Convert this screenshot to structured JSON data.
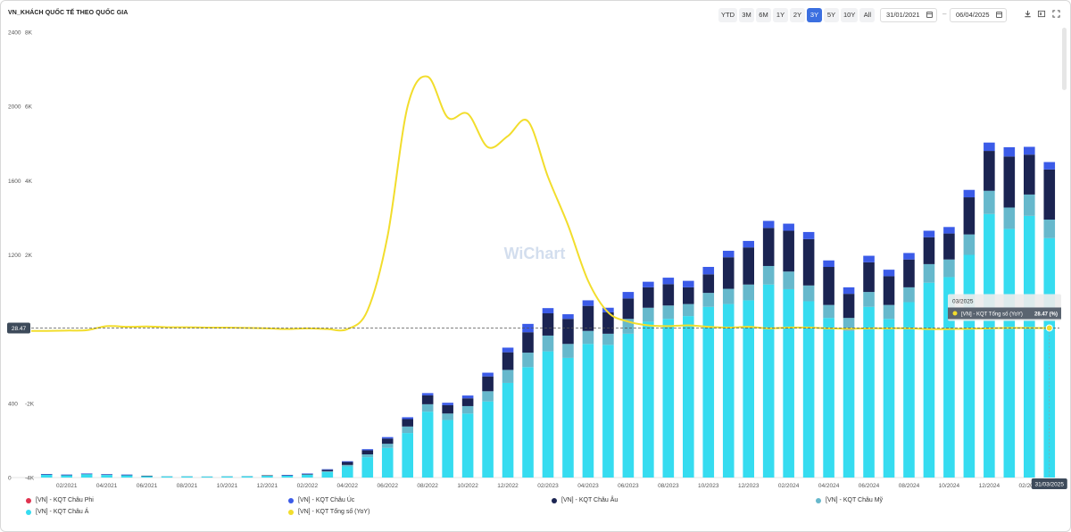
{
  "title": "VN_KHÁCH QUỐC TẾ THEO QUỐC GIA",
  "range_buttons": [
    "YTD",
    "3M",
    "6M",
    "1Y",
    "2Y",
    "3Y",
    "5Y",
    "10Y",
    "All"
  ],
  "active_range": "3Y",
  "date_from": "31/01/2021",
  "date_sep": "–",
  "date_to": "06/04/2025",
  "icons": {
    "download": "download-icon",
    "excel": "excel-icon",
    "fullscreen": "fullscreen-icon",
    "calendar": "calendar-icon"
  },
  "watermark": "WiChart",
  "tooltip": {
    "date": "03/2025",
    "series": "[VN] - KQT Tổng số (YoY)",
    "value": "28.47 (%)"
  },
  "crosshair": {
    "y_label": "28.47",
    "x_label": "31/03/2025"
  },
  "legend": [
    {
      "name": "[VN] - KQT Châu Phi",
      "color": "#e0334f"
    },
    {
      "name": "[VN] - KQT Châu Úc",
      "color": "#3b5be8"
    },
    {
      "name": "[VN] - KQT Châu Âu",
      "color": "#1b2452"
    },
    {
      "name": "[VN] - KQT Châu Mỹ",
      "color": "#67b8cc"
    },
    {
      "name": "[VN] - KQT Châu Á",
      "color": "#36dcf0"
    },
    {
      "name": "[VN] - KQT Tổng số (YoY)",
      "color": "#f2dd2c"
    }
  ],
  "chart_data": {
    "type": "bar",
    "stacked": true,
    "x": [
      "01/2021",
      "02/2021",
      "03/2021",
      "04/2021",
      "05/2021",
      "06/2021",
      "07/2021",
      "08/2021",
      "09/2021",
      "10/2021",
      "11/2021",
      "12/2021",
      "01/2022",
      "02/2022",
      "03/2022",
      "04/2022",
      "05/2022",
      "06/2022",
      "07/2022",
      "08/2022",
      "09/2022",
      "10/2022",
      "11/2022",
      "12/2022",
      "01/2023",
      "02/2023",
      "03/2023",
      "04/2023",
      "05/2023",
      "06/2023",
      "07/2023",
      "08/2023",
      "09/2023",
      "10/2023",
      "11/2023",
      "12/2023",
      "01/2024",
      "02/2024",
      "03/2024",
      "04/2024",
      "05/2024",
      "06/2024",
      "07/2024",
      "08/2024",
      "09/2024",
      "10/2024",
      "11/2024",
      "12/2024",
      "01/2025",
      "02/2025",
      "03/2025"
    ],
    "x_tick_labels": [
      "02/2021",
      "04/2021",
      "06/2021",
      "08/2021",
      "10/2021",
      "12/2021",
      "02/2022",
      "04/2022",
      "06/2022",
      "08/2022",
      "10/2022",
      "12/2022",
      "02/2023",
      "04/2023",
      "06/2023",
      "08/2023",
      "10/2023",
      "12/2023",
      "02/2024",
      "04/2024",
      "06/2024",
      "08/2024",
      "10/2024",
      "12/2024",
      "02/2025"
    ],
    "left_axis": {
      "ticks": [
        0,
        400,
        800,
        1200,
        1600,
        2000,
        2400
      ],
      "labels": [
        "0",
        "400",
        "800",
        "1200",
        "1600",
        "2000",
        "2400"
      ],
      "ylim": [
        0,
        2400
      ]
    },
    "right_axis": {
      "ticks": [
        -4000,
        -2000,
        0,
        2000,
        4000,
        6000,
        8000
      ],
      "labels": [
        "-4K",
        "-2K",
        "0",
        "2K",
        "4K",
        "6K",
        "8K"
      ],
      "ylim": [
        -4000,
        8000
      ]
    },
    "series": [
      {
        "name": "[VN] - KQT Châu Á",
        "color": "#36dcf0",
        "axis": "left",
        "values": [
          15,
          12,
          18,
          14,
          12,
          8,
          6,
          6,
          5,
          6,
          7,
          10,
          10,
          15,
          30,
          60,
          110,
          160,
          240,
          355,
          310,
          345,
          410,
          510,
          595,
          680,
          645,
          720,
          715,
          775,
          840,
          855,
          870,
          920,
          935,
          955,
          1040,
          1015,
          950,
          860,
          790,
          920,
          855,
          945,
          1050,
          1080,
          1200,
          1420,
          1340,
          1410,
          1290
        ]
      },
      {
        "name": "[VN] - KQT Châu Mỹ",
        "color": "#67b8cc",
        "axis": "left",
        "values": [
          2,
          2,
          2,
          2,
          2,
          1,
          1,
          1,
          1,
          1,
          1,
          1,
          2,
          2,
          4,
          8,
          15,
          22,
          35,
          40,
          35,
          40,
          55,
          70,
          78,
          85,
          75,
          70,
          60,
          80,
          75,
          72,
          65,
          75,
          82,
          85,
          100,
          95,
          85,
          70,
          70,
          80,
          75,
          80,
          100,
          95,
          110,
          125,
          115,
          115,
          100
        ]
      },
      {
        "name": "[VN] - KQT Châu Âu",
        "color": "#1b2452",
        "axis": "left",
        "values": [
          1,
          1,
          1,
          1,
          1,
          1,
          0,
          0,
          0,
          0,
          0,
          1,
          1,
          3,
          8,
          16,
          22,
          28,
          40,
          48,
          45,
          42,
          80,
          95,
          110,
          120,
          135,
          135,
          115,
          110,
          110,
          115,
          90,
          100,
          170,
          200,
          205,
          220,
          250,
          205,
          130,
          160,
          155,
          150,
          145,
          140,
          200,
          215,
          275,
          215,
          270
        ]
      },
      {
        "name": "[VN] - KQT Châu Úc",
        "color": "#3b5be8",
        "axis": "left",
        "values": [
          1,
          1,
          1,
          1,
          1,
          0,
          0,
          0,
          0,
          0,
          0,
          0,
          1,
          2,
          3,
          4,
          6,
          8,
          10,
          12,
          13,
          15,
          20,
          25,
          45,
          28,
          25,
          30,
          25,
          35,
          30,
          35,
          35,
          40,
          35,
          35,
          38,
          38,
          38,
          35,
          35,
          35,
          35,
          35,
          35,
          35,
          40,
          45,
          50,
          42,
          40
        ]
      },
      {
        "name": "[VN] - KQT Châu Phi",
        "color": "#e0334f",
        "axis": "left",
        "values": [
          0,
          0,
          0,
          0,
          0,
          0,
          0,
          0,
          0,
          0,
          0,
          0,
          0,
          0,
          0,
          0,
          0,
          0,
          0,
          0,
          0,
          0,
          0,
          0,
          0,
          0,
          0,
          0,
          0,
          0,
          0,
          0,
          0,
          0,
          0,
          0,
          0,
          0,
          0,
          0,
          0,
          0,
          0,
          0,
          0,
          0,
          0,
          0,
          0,
          0,
          0
        ]
      },
      {
        "name": "[VN] - KQT Tổng số (YoY)",
        "color": "#f2dd2c",
        "axis": "right",
        "type": "line",
        "values": [
          -50,
          -40,
          -30,
          80,
          60,
          70,
          50,
          50,
          40,
          40,
          30,
          20,
          0,
          20,
          0,
          0,
          500,
          2500,
          6000,
          6800,
          5700,
          5800,
          4900,
          5200,
          5600,
          4100,
          2800,
          1300,
          450,
          200,
          100,
          80,
          100,
          60,
          40,
          60,
          20,
          40,
          40,
          20,
          10,
          20,
          20,
          20,
          0,
          0,
          10,
          20,
          30,
          30,
          28.47
        ]
      }
    ]
  }
}
